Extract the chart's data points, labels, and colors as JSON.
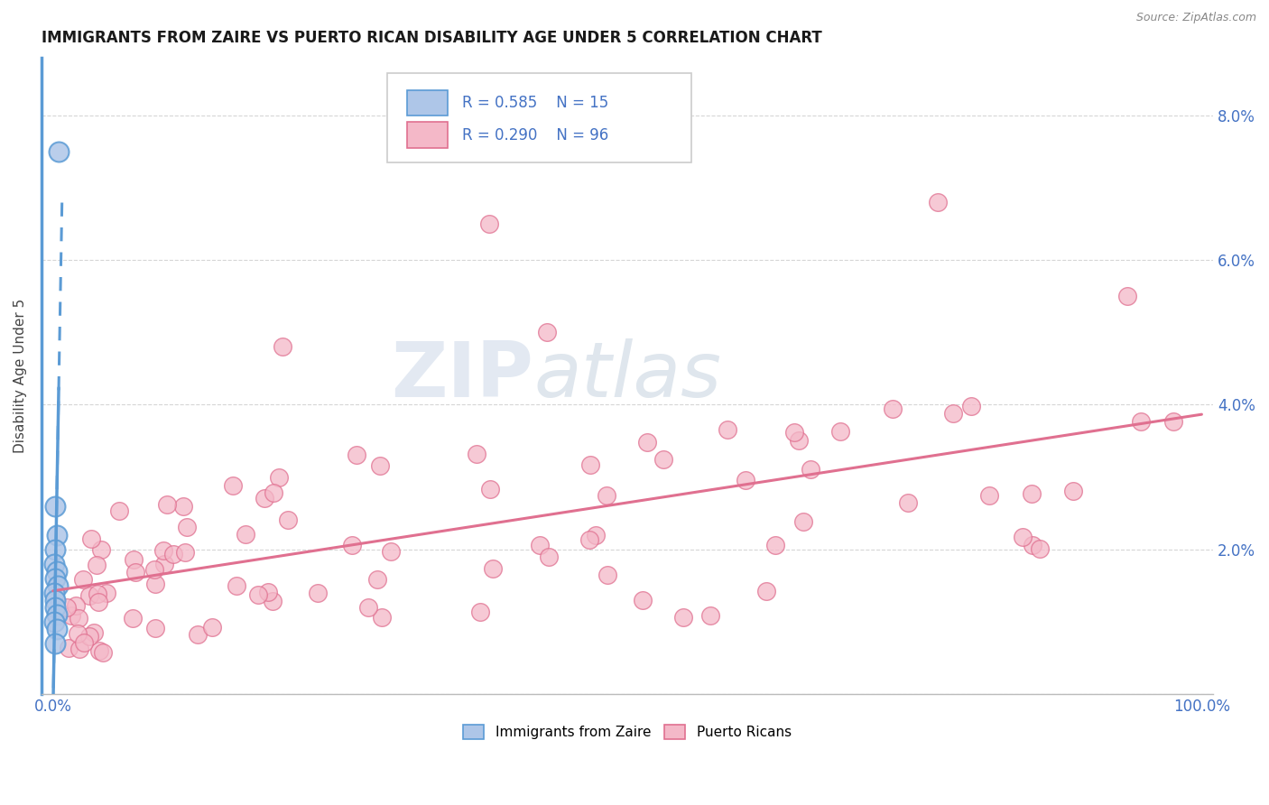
{
  "title": "IMMIGRANTS FROM ZAIRE VS PUERTO RICAN DISABILITY AGE UNDER 5 CORRELATION CHART",
  "source": "Source: ZipAtlas.com",
  "ylabel": "Disability Age Under 5",
  "xlim": [
    -0.01,
    1.01
  ],
  "ylim": [
    0.0,
    0.088
  ],
  "y_ticks": [
    0.0,
    0.02,
    0.04,
    0.06,
    0.08
  ],
  "y_tick_labels": [
    "",
    "2.0%",
    "4.0%",
    "6.0%",
    "8.0%"
  ],
  "x_tick_labels_left": "0.0%",
  "x_tick_labels_right": "100.0%",
  "zaire_R": "0.585",
  "zaire_N": "15",
  "pr_R": "0.290",
  "pr_N": "96",
  "legend_zaire": "Immigrants from Zaire",
  "legend_pr": "Puerto Ricans",
  "watermark_zip": "ZIP",
  "watermark_atlas": "atlas",
  "zaire_color": "#aec6e8",
  "zaire_edge": "#5b9bd5",
  "pr_color": "#f4b8c8",
  "pr_edge": "#e07090",
  "zaire_line_color": "#5b9bd5",
  "pr_line_color": "#e07090",
  "background_color": "#ffffff",
  "grid_color": "#cccccc",
  "tick_color": "#4472c4",
  "title_color": "#1a1a1a"
}
